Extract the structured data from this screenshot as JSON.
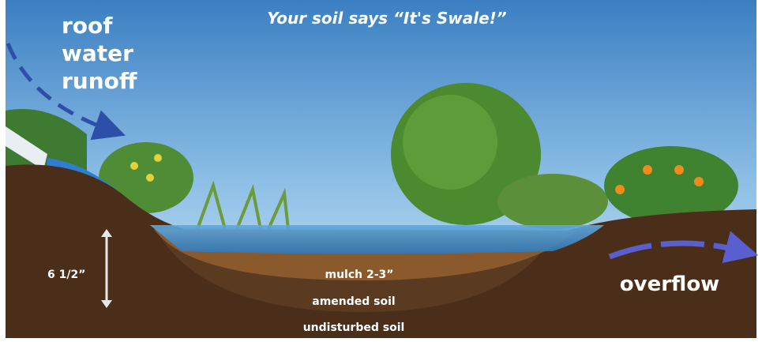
{
  "subtitle": "Your soil says “It's Swale!”",
  "roof_runoff": [
    "roof",
    "water",
    "runoff"
  ],
  "depth": "6 1/2”",
  "layers": [
    "mulch 2-3”",
    "amended soil",
    "undisturbed soil"
  ],
  "overflow": "overflow"
}
